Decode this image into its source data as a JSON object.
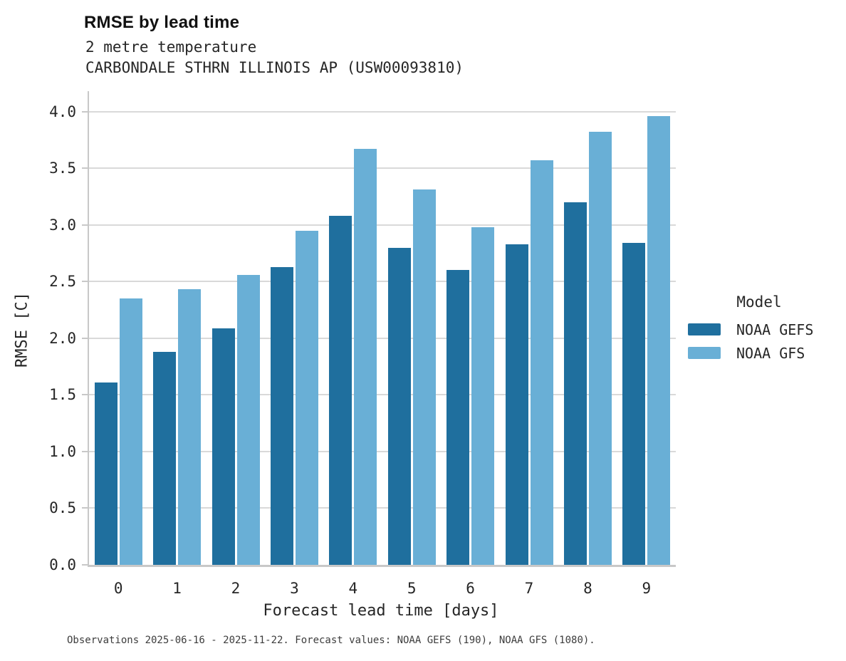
{
  "chart_data": {
    "type": "bar",
    "title": "RMSE by lead time",
    "subtitle_lines": [
      "2 metre temperature",
      "CARBONDALE STHRN ILLINOIS AP (USW00093810)"
    ],
    "categories": [
      "0",
      "1",
      "2",
      "3",
      "4",
      "5",
      "6",
      "7",
      "8",
      "9"
    ],
    "series": [
      {
        "name": "NOAA GEFS",
        "color": "#1f6f9e",
        "values": [
          1.61,
          1.88,
          2.09,
          2.63,
          3.08,
          2.8,
          2.6,
          2.83,
          3.2,
          2.84
        ]
      },
      {
        "name": "NOAA GFS",
        "color": "#69afd6",
        "values": [
          2.35,
          2.43,
          2.56,
          2.95,
          3.67,
          3.31,
          2.98,
          3.57,
          3.82,
          3.96
        ]
      }
    ],
    "xlabel": "Forecast lead time [days]",
    "ylabel": "RMSE [C]",
    "y_axis": {
      "min": 0,
      "max": 4.0,
      "ticks": [
        0,
        0.5,
        1,
        1.5,
        2,
        2.5,
        3,
        3.5,
        4
      ],
      "top_padding_value": 4.18
    },
    "grid": "horizontal",
    "legend": {
      "title": "Model",
      "position": "right-of-plot"
    },
    "note": "Observations 2025-06-16 - 2025-11-22. Forecast values: NOAA GEFS (190), NOAA GFS (1080)."
  },
  "style": {
    "bar_dark": "#1f6f9e",
    "bar_light": "#69afd6",
    "grid_color": "#d9d9d9",
    "spine_color": "#c8c8c8",
    "text_color": "#262626",
    "title_color": "#111111",
    "note_color": "#3d3d3d",
    "background": "#ffffff"
  }
}
